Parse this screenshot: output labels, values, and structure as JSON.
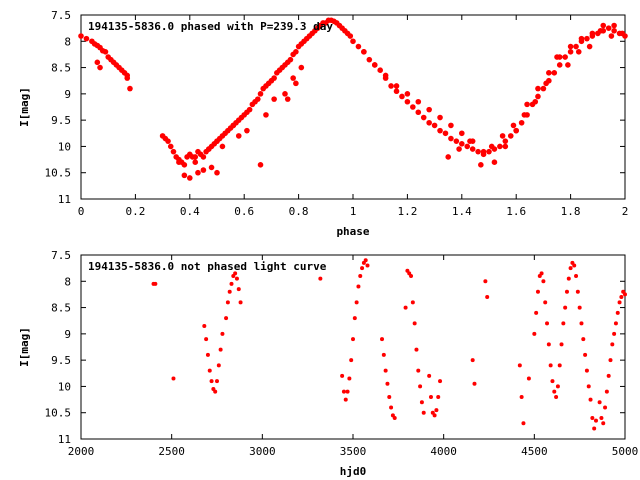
{
  "chart_data": [
    {
      "type": "scatter",
      "title": "194135-5836.0 phased with P=239.3 day",
      "xlabel": "phase",
      "ylabel": "I[mag]",
      "xlim": [
        0,
        2
      ],
      "ylim": [
        7.5,
        11
      ],
      "y_inverted": true,
      "grid": false,
      "legend": "none",
      "xticks": [
        "0",
        "0.2",
        "0.4",
        "0.6",
        "0.8",
        "1",
        "1.2",
        "1.4",
        "1.6",
        "1.8",
        "2"
      ],
      "yticks": [
        "7.5",
        "8",
        "8.5",
        "9",
        "9.5",
        "10",
        "10.5",
        "11"
      ],
      "marker_color": "#ff0000",
      "series": [
        {
          "x": [
            0.0,
            0.02,
            0.04,
            0.05,
            0.06,
            0.07,
            0.08,
            0.09,
            0.1,
            0.11,
            0.12,
            0.13,
            0.14,
            0.15,
            0.16,
            0.17,
            0.18,
            0.06,
            0.07,
            0.17,
            0.3,
            0.31,
            0.32,
            0.33,
            0.34,
            0.35,
            0.36,
            0.37,
            0.38,
            0.39,
            0.4,
            0.41,
            0.42,
            0.43,
            0.44,
            0.45,
            0.46,
            0.47,
            0.48,
            0.49,
            0.5,
            0.51,
            0.52,
            0.53,
            0.54,
            0.55,
            0.56,
            0.57,
            0.58,
            0.59,
            0.6,
            0.61,
            0.62,
            0.63,
            0.64,
            0.65,
            0.66,
            0.67,
            0.68,
            0.69,
            0.7,
            0.71,
            0.72,
            0.73,
            0.74,
            0.75,
            0.76,
            0.77,
            0.78,
            0.79,
            0.8,
            0.81,
            0.82,
            0.83,
            0.84,
            0.85,
            0.86,
            0.87,
            0.88,
            0.89,
            0.9,
            0.91,
            0.92,
            0.93,
            0.94,
            0.95,
            0.96,
            0.97,
            0.98,
            0.99,
            0.36,
            0.38,
            0.4,
            0.43,
            0.45,
            0.48,
            0.5,
            0.42,
            0.47,
            0.5,
            0.52,
            0.56,
            0.58,
            0.61,
            0.66,
            0.68,
            0.71,
            0.75,
            0.78,
            0.81,
            0.76,
            0.79,
            1.0,
            1.02,
            1.04,
            1.06,
            1.08,
            1.1,
            1.12,
            1.14,
            1.16,
            1.18,
            1.2,
            1.22,
            1.24,
            1.26,
            1.28,
            1.3,
            1.32,
            1.34,
            1.36,
            1.38,
            1.4,
            1.42,
            1.44,
            1.46,
            1.48,
            1.5,
            1.52,
            1.54,
            1.56,
            1.58,
            1.6,
            1.62,
            1.64,
            1.66,
            1.68,
            1.7,
            1.72,
            1.74,
            1.76,
            1.78,
            1.8,
            1.82,
            1.84,
            1.86,
            1.88,
            1.9,
            1.92,
            1.94,
            1.96,
            1.98,
            2.0,
            1.04,
            1.08,
            1.12,
            1.16,
            1.2,
            1.24,
            1.28,
            1.32,
            1.36,
            1.4,
            1.44,
            1.48,
            1.52,
            1.56,
            1.6,
            1.64,
            1.68,
            1.72,
            1.76,
            1.8,
            1.84,
            1.88,
            1.92,
            1.96,
            1.99,
            1.35,
            1.39,
            1.43,
            1.47,
            1.51,
            1.55,
            1.59,
            1.63,
            1.67,
            1.71,
            1.75,
            1.79,
            1.83,
            1.87,
            1.91,
            1.95
          ],
          "y": [
            7.9,
            7.95,
            8.0,
            8.05,
            8.08,
            8.12,
            8.18,
            8.2,
            8.3,
            8.35,
            8.4,
            8.45,
            8.5,
            8.55,
            8.6,
            8.65,
            8.9,
            8.4,
            8.5,
            8.7,
            9.8,
            9.85,
            9.9,
            10.0,
            10.1,
            10.2,
            10.25,
            10.3,
            10.35,
            10.2,
            10.15,
            10.2,
            10.3,
            10.1,
            10.15,
            10.2,
            10.1,
            10.05,
            10.0,
            9.95,
            9.9,
            9.85,
            9.8,
            9.75,
            9.7,
            9.65,
            9.6,
            9.55,
            9.5,
            9.45,
            9.4,
            9.35,
            9.3,
            9.2,
            9.15,
            9.1,
            9.0,
            8.9,
            8.85,
            8.8,
            8.75,
            8.7,
            8.6,
            8.55,
            8.5,
            8.45,
            8.4,
            8.35,
            8.25,
            8.2,
            8.1,
            8.05,
            8.0,
            7.95,
            7.9,
            7.85,
            7.8,
            7.75,
            7.7,
            7.65,
            7.65,
            7.6,
            7.6,
            7.62,
            7.65,
            7.7,
            7.75,
            7.8,
            7.85,
            7.9,
            10.3,
            10.55,
            10.6,
            10.5,
            10.45,
            10.4,
            10.5,
            10.2,
            10.05,
            9.9,
            10.0,
            9.6,
            9.8,
            9.7,
            10.35,
            9.4,
            9.1,
            9.0,
            8.7,
            8.5,
            9.1,
            8.8,
            8.0,
            8.1,
            8.2,
            8.35,
            8.45,
            8.55,
            8.7,
            8.85,
            8.95,
            9.05,
            9.15,
            9.25,
            9.35,
            9.45,
            9.55,
            9.6,
            9.7,
            9.75,
            9.85,
            9.9,
            9.95,
            10.0,
            10.05,
            10.1,
            10.15,
            10.1,
            10.05,
            10.0,
            9.9,
            9.8,
            9.7,
            9.55,
            9.4,
            9.2,
            9.05,
            8.9,
            8.75,
            8.6,
            8.45,
            8.3,
            8.2,
            8.1,
            8.0,
            7.95,
            7.9,
            7.85,
            7.8,
            7.75,
            7.8,
            7.85,
            7.9,
            8.2,
            8.45,
            8.65,
            8.85,
            9.0,
            9.15,
            9.3,
            9.45,
            9.6,
            9.75,
            9.9,
            10.1,
            10.3,
            10.0,
            9.7,
            9.2,
            8.9,
            8.6,
            8.3,
            8.1,
            7.95,
            7.85,
            7.7,
            7.7,
            7.85,
            10.2,
            10.05,
            9.9,
            10.35,
            10.0,
            9.8,
            9.6,
            9.4,
            9.15,
            8.8,
            8.3,
            8.45,
            8.2,
            8.1,
            7.8,
            7.9
          ]
        }
      ]
    },
    {
      "type": "scatter",
      "title": "194135-5836.0 not phased light curve",
      "xlabel": "hjd0",
      "ylabel": "I[mag]",
      "xlim": [
        2000,
        5000
      ],
      "ylim": [
        7.5,
        11
      ],
      "y_inverted": true,
      "grid": false,
      "legend": "none",
      "xticks": [
        "2000",
        "2500",
        "3000",
        "3500",
        "4000",
        "4500",
        "5000"
      ],
      "yticks": [
        "7.5",
        "8",
        "8.5",
        "9",
        "9.5",
        "10",
        "10.5",
        "11"
      ],
      "marker_color": "#ff0000",
      "series": [
        {
          "x": [
            2400,
            2410,
            2510,
            2680,
            2690,
            2700,
            2710,
            2720,
            2730,
            2740,
            2750,
            2760,
            2770,
            2780,
            2800,
            2810,
            2820,
            2830,
            2840,
            2850,
            2860,
            2870,
            2880,
            3320,
            3440,
            3450,
            3460,
            3470,
            3480,
            3490,
            3500,
            3510,
            3520,
            3530,
            3540,
            3550,
            3560,
            3570,
            3580,
            3660,
            3670,
            3680,
            3690,
            3700,
            3710,
            3720,
            3730,
            3790,
            3800,
            3810,
            3820,
            3830,
            3840,
            3850,
            3860,
            3870,
            3880,
            3890,
            3920,
            3930,
            3940,
            3950,
            3960,
            3970,
            3980,
            4160,
            4170,
            4230,
            4240,
            4420,
            4430,
            4440,
            4470,
            4500,
            4510,
            4520,
            4530,
            4540,
            4550,
            4560,
            4570,
            4580,
            4590,
            4600,
            4610,
            4620,
            4630,
            4640,
            4650,
            4660,
            4670,
            4680,
            4690,
            4700,
            4710,
            4720,
            4730,
            4740,
            4750,
            4760,
            4770,
            4780,
            4790,
            4800,
            4810,
            4820,
            4830,
            4840,
            4860,
            4870,
            4880,
            4890,
            4900,
            4910,
            4920,
            4930,
            4940,
            4950,
            4960,
            4970,
            4980,
            4990,
            5000
          ],
          "y": [
            8.05,
            8.05,
            9.85,
            8.85,
            9.1,
            9.4,
            9.7,
            9.9,
            10.05,
            10.1,
            9.9,
            9.6,
            9.3,
            9.0,
            8.7,
            8.4,
            8.2,
            8.05,
            7.9,
            7.85,
            7.95,
            8.15,
            8.4,
            7.95,
            9.8,
            10.1,
            10.25,
            10.1,
            9.85,
            9.5,
            9.1,
            8.7,
            8.4,
            8.1,
            7.9,
            7.75,
            7.65,
            7.6,
            7.7,
            9.1,
            9.4,
            9.7,
            9.95,
            10.2,
            10.4,
            10.55,
            10.6,
            8.5,
            7.8,
            7.85,
            7.9,
            8.4,
            8.8,
            9.3,
            9.7,
            10.0,
            10.3,
            10.5,
            9.8,
            10.2,
            10.5,
            10.55,
            10.45,
            10.2,
            9.9,
            9.5,
            9.95,
            8.0,
            8.3,
            9.6,
            10.2,
            10.7,
            9.85,
            9.0,
            8.6,
            8.2,
            7.9,
            7.85,
            8.0,
            8.4,
            8.8,
            9.2,
            9.6,
            9.9,
            10.1,
            10.2,
            10.0,
            9.6,
            9.2,
            8.8,
            8.5,
            8.2,
            7.95,
            7.75,
            7.65,
            7.7,
            7.9,
            8.2,
            8.5,
            8.8,
            9.1,
            9.4,
            9.7,
            10.0,
            10.25,
            10.6,
            10.8,
            10.65,
            10.3,
            10.6,
            10.7,
            10.4,
            10.1,
            9.8,
            9.5,
            9.2,
            9.0,
            8.8,
            8.6,
            8.4,
            8.3,
            8.2,
            8.25
          ]
        }
      ]
    }
  ]
}
